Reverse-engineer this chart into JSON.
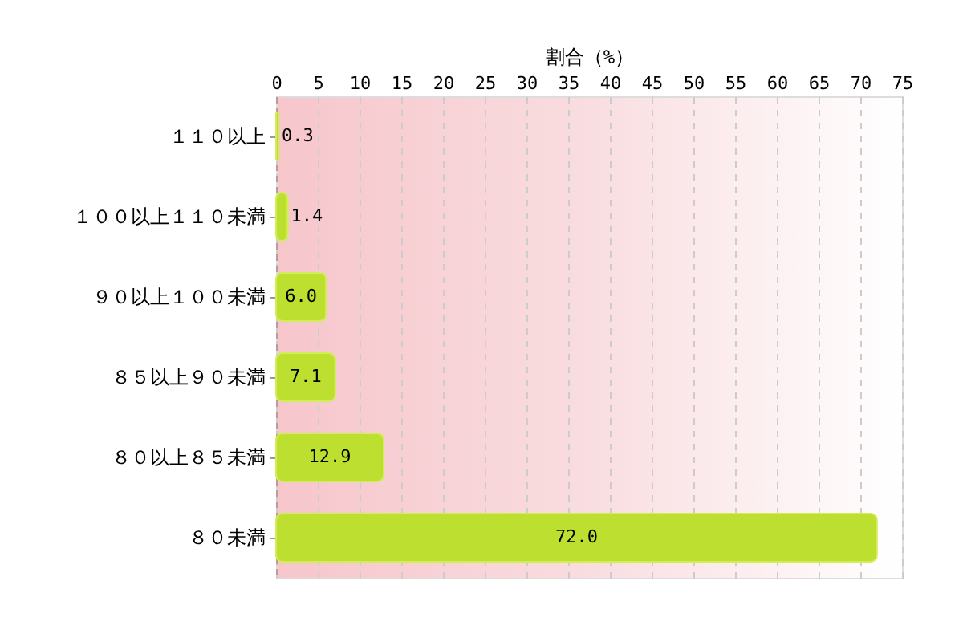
{
  "chart_data": {
    "type": "bar",
    "orientation": "horizontal",
    "xlabel": "割合（%）",
    "categories": [
      "１１０以上",
      "１００以上１１０未満",
      "９０以上１００未満",
      "８５以上９０未満",
      "８０以上８５未満",
      "８０未満"
    ],
    "values": [
      0.3,
      1.4,
      6.0,
      7.1,
      12.9,
      72.0
    ],
    "value_labels": [
      "0.3",
      "1.4",
      "6.0",
      "7.1",
      "12.9",
      "72.0"
    ],
    "color": "#bde030",
    "xlim": [
      0,
      75
    ],
    "xticks": [
      0,
      5,
      10,
      15,
      20,
      25,
      30,
      35,
      40,
      45,
      50,
      55,
      60,
      65,
      70,
      75
    ],
    "grid": "x"
  }
}
